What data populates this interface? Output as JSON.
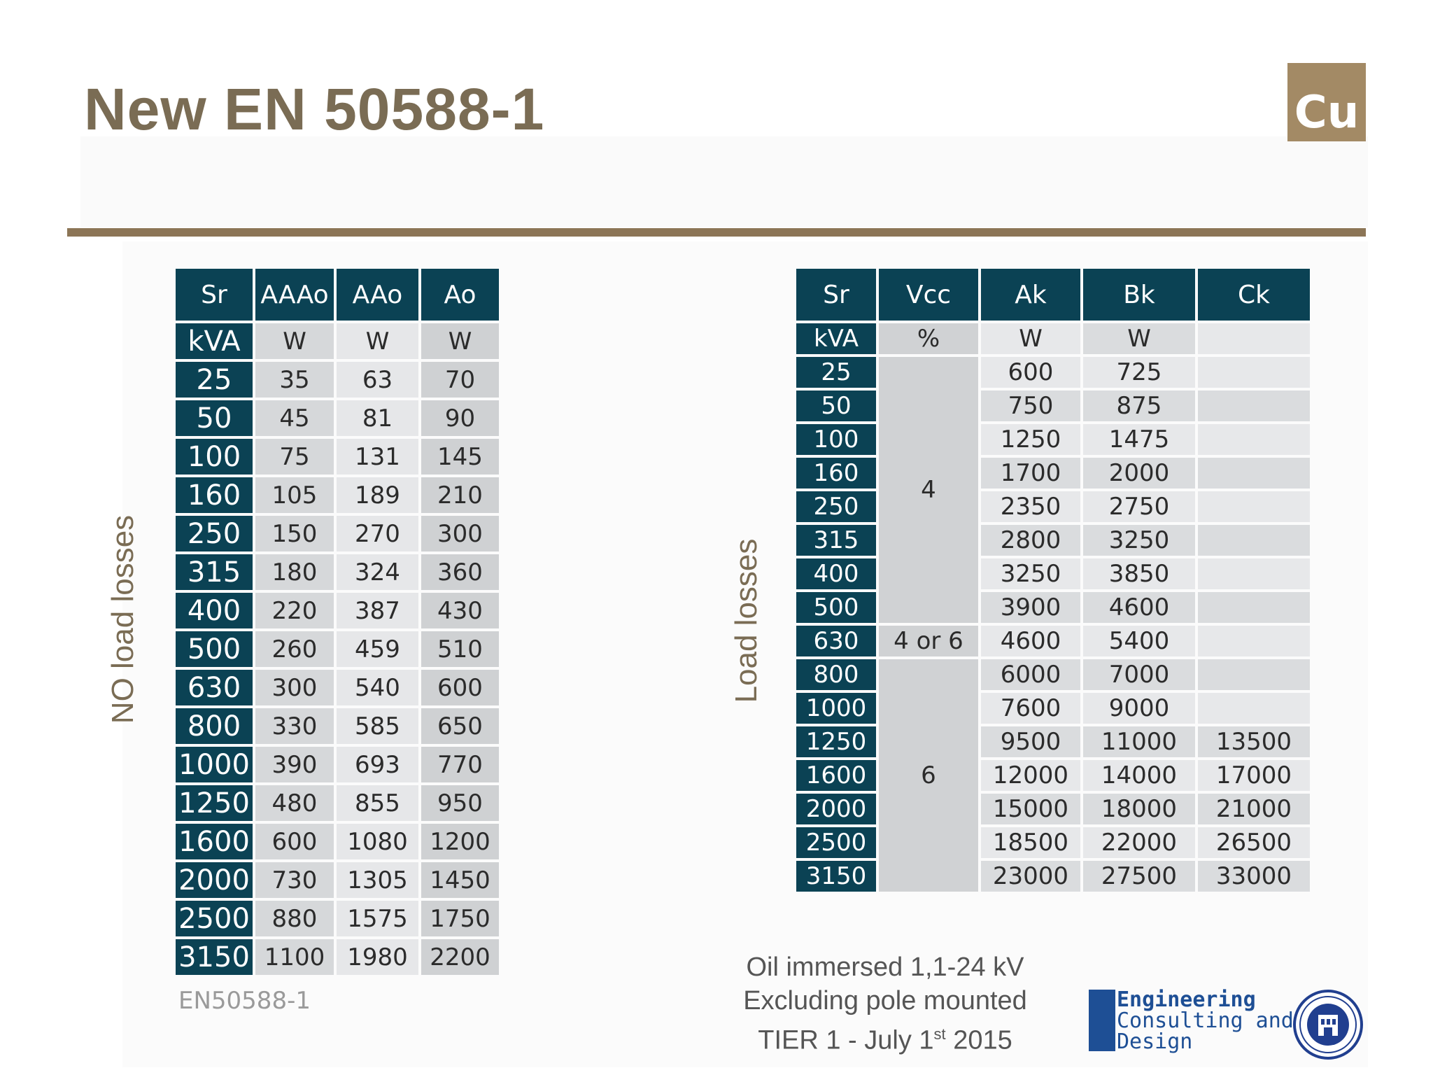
{
  "title": "New EN 50588-1",
  "badge": "Cu",
  "left_table": {
    "side_label": "NO load losses",
    "headers": [
      "Sr",
      "AAAo",
      "AAo",
      "Ao"
    ],
    "units": [
      "kVA",
      "W",
      "W",
      "W"
    ],
    "rows": [
      [
        "25",
        "35",
        "63",
        "70"
      ],
      [
        "50",
        "45",
        "81",
        "90"
      ],
      [
        "100",
        "75",
        "131",
        "145"
      ],
      [
        "160",
        "105",
        "189",
        "210"
      ],
      [
        "250",
        "150",
        "270",
        "300"
      ],
      [
        "315",
        "180",
        "324",
        "360"
      ],
      [
        "400",
        "220",
        "387",
        "430"
      ],
      [
        "500",
        "260",
        "459",
        "510"
      ],
      [
        "630",
        "300",
        "540",
        "600"
      ],
      [
        "800",
        "330",
        "585",
        "650"
      ],
      [
        "1000",
        "390",
        "693",
        "770"
      ],
      [
        "1250",
        "480",
        "855",
        "950"
      ],
      [
        "1600",
        "600",
        "1080",
        "1200"
      ],
      [
        "2000",
        "730",
        "1305",
        "1450"
      ],
      [
        "2500",
        "880",
        "1575",
        "1750"
      ],
      [
        "3150",
        "1100",
        "1980",
        "2200"
      ]
    ],
    "source": "EN50588-1"
  },
  "right_table": {
    "side_label": "Load losses",
    "headers": [
      "Sr",
      "Vcc",
      "Ak",
      "Bk",
      "Ck"
    ],
    "units": [
      "kVA",
      "%",
      "W",
      "W",
      ""
    ],
    "vcc_groups": [
      "4",
      "4 or 6",
      "6"
    ],
    "rows": [
      [
        "25",
        "600",
        "725",
        ""
      ],
      [
        "50",
        "750",
        "875",
        ""
      ],
      [
        "100",
        "1250",
        "1475",
        ""
      ],
      [
        "160",
        "1700",
        "2000",
        ""
      ],
      [
        "250",
        "2350",
        "2750",
        ""
      ],
      [
        "315",
        "2800",
        "3250",
        ""
      ],
      [
        "400",
        "3250",
        "3850",
        ""
      ],
      [
        "500",
        "3900",
        "4600",
        ""
      ],
      [
        "630",
        "4600",
        "5400",
        ""
      ],
      [
        "800",
        "6000",
        "7000",
        ""
      ],
      [
        "1000",
        "7600",
        "9000",
        ""
      ],
      [
        "1250",
        "9500",
        "11000",
        "13500"
      ],
      [
        "1600",
        "12000",
        "14000",
        "17000"
      ],
      [
        "2000",
        "15000",
        "18000",
        "21000"
      ],
      [
        "2500",
        "18500",
        "22000",
        "26500"
      ],
      [
        "3150",
        "23000",
        "27500",
        "33000"
      ]
    ]
  },
  "notes": {
    "line1": "Oil immersed 1,1-24 kV",
    "line2": "Excluding pole mounted",
    "line3_pre": "TIER 1  - July 1",
    "line3_sup": "st",
    "line3_post": " 2015"
  },
  "logo": {
    "line1": "Engineering",
    "line2": "Consulting and",
    "line3": "Design"
  }
}
